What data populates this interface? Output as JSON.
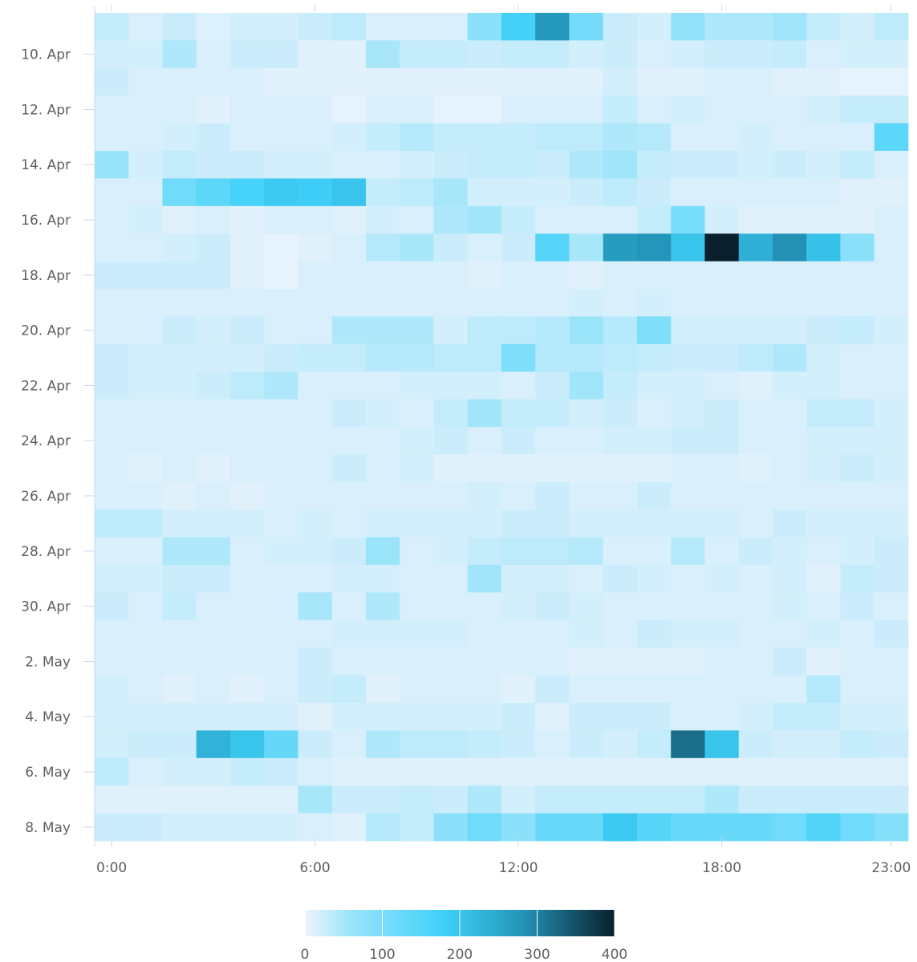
{
  "chart_data": {
    "type": "heatmap",
    "title": "",
    "xlabel": "",
    "ylabel": "",
    "x_tick_labels": [
      "0:00",
      "6:00",
      "12:00",
      "18:00",
      "23:00"
    ],
    "y_tick_labels": [
      "10. Apr",
      "12. Apr",
      "14. Apr",
      "16. Apr",
      "18. Apr",
      "20. Apr",
      "22. Apr",
      "24. Apr",
      "26. Apr",
      "28. Apr",
      "30. Apr",
      "2. May",
      "4. May",
      "6. May",
      "8. May"
    ],
    "x": [
      0,
      1,
      2,
      3,
      4,
      5,
      6,
      7,
      8,
      9,
      10,
      11,
      12,
      13,
      14,
      15,
      16,
      17,
      18,
      19,
      20,
      21,
      22,
      23
    ],
    "y": [
      "9. Apr",
      "10. Apr",
      "11. Apr",
      "12. Apr",
      "13. Apr",
      "14. Apr",
      "15. Apr",
      "16. Apr",
      "17. Apr",
      "18. Apr",
      "19. Apr",
      "20. Apr",
      "21. Apr",
      "22. Apr",
      "23. Apr",
      "24. Apr",
      "25. Apr",
      "26. Apr",
      "27. Apr",
      "28. Apr",
      "29. Apr",
      "30. Apr",
      "1. May",
      "2. May",
      "3. May",
      "4. May",
      "5. May",
      "6. May",
      "7. May",
      "8. May"
    ],
    "values": [
      [
        30,
        15,
        25,
        12,
        20,
        20,
        25,
        35,
        15,
        15,
        15,
        80,
        175,
        275,
        110,
        25,
        20,
        70,
        45,
        45,
        55,
        30,
        20,
        35
      ],
      [
        20,
        20,
        45,
        15,
        25,
        25,
        10,
        10,
        50,
        30,
        30,
        25,
        30,
        30,
        20,
        25,
        15,
        20,
        25,
        25,
        30,
        15,
        20,
        20
      ],
      [
        25,
        15,
        15,
        15,
        15,
        10,
        10,
        10,
        10,
        10,
        10,
        10,
        10,
        10,
        10,
        20,
        10,
        10,
        15,
        15,
        10,
        10,
        5,
        5
      ],
      [
        15,
        15,
        15,
        10,
        15,
        15,
        15,
        5,
        15,
        15,
        5,
        5,
        15,
        15,
        15,
        30,
        15,
        20,
        15,
        15,
        15,
        20,
        30,
        30
      ],
      [
        15,
        15,
        20,
        25,
        15,
        15,
        15,
        20,
        30,
        40,
        30,
        30,
        30,
        35,
        35,
        45,
        40,
        15,
        15,
        20,
        15,
        15,
        15,
        140
      ],
      [
        65,
        20,
        30,
        25,
        25,
        20,
        20,
        15,
        15,
        20,
        25,
        30,
        30,
        25,
        45,
        55,
        30,
        25,
        25,
        20,
        25,
        20,
        30,
        15
      ],
      [
        15,
        15,
        115,
        140,
        170,
        190,
        185,
        200,
        30,
        35,
        50,
        20,
        20,
        20,
        25,
        35,
        25,
        15,
        15,
        15,
        15,
        15,
        10,
        10
      ],
      [
        15,
        20,
        10,
        15,
        10,
        15,
        15,
        10,
        20,
        15,
        45,
        55,
        30,
        15,
        15,
        15,
        30,
        105,
        20,
        10,
        10,
        10,
        10,
        15
      ],
      [
        15,
        15,
        20,
        25,
        10,
        5,
        10,
        15,
        40,
        50,
        25,
        15,
        25,
        150,
        50,
        270,
        280,
        200,
        400,
        235,
        285,
        205,
        80,
        15
      ],
      [
        25,
        25,
        25,
        25,
        10,
        5,
        15,
        15,
        15,
        15,
        15,
        10,
        15,
        15,
        10,
        15,
        15,
        15,
        15,
        15,
        15,
        15,
        15,
        15
      ],
      [
        15,
        15,
        15,
        15,
        15,
        15,
        15,
        15,
        15,
        15,
        15,
        15,
        15,
        15,
        20,
        15,
        20,
        15,
        15,
        15,
        15,
        15,
        15,
        15
      ],
      [
        15,
        15,
        25,
        20,
        25,
        15,
        15,
        45,
        45,
        45,
        20,
        35,
        35,
        40,
        60,
        40,
        95,
        20,
        20,
        20,
        20,
        25,
        30,
        20
      ],
      [
        25,
        20,
        20,
        20,
        20,
        25,
        30,
        30,
        40,
        40,
        35,
        35,
        95,
        40,
        40,
        35,
        30,
        25,
        25,
        35,
        45,
        20,
        15,
        15
      ],
      [
        25,
        20,
        20,
        25,
        35,
        45,
        15,
        15,
        15,
        20,
        20,
        20,
        15,
        25,
        55,
        30,
        20,
        20,
        15,
        10,
        20,
        20,
        15,
        15
      ],
      [
        15,
        15,
        15,
        15,
        15,
        15,
        15,
        25,
        20,
        15,
        30,
        55,
        30,
        30,
        20,
        25,
        15,
        20,
        25,
        15,
        15,
        30,
        30,
        20
      ],
      [
        15,
        15,
        15,
        15,
        15,
        15,
        15,
        15,
        15,
        20,
        25,
        15,
        25,
        15,
        15,
        20,
        20,
        25,
        25,
        15,
        15,
        20,
        20,
        20
      ],
      [
        15,
        10,
        15,
        10,
        15,
        15,
        15,
        25,
        15,
        20,
        10,
        10,
        10,
        10,
        10,
        10,
        10,
        15,
        15,
        10,
        15,
        20,
        25,
        20
      ],
      [
        15,
        15,
        10,
        15,
        10,
        15,
        15,
        15,
        15,
        15,
        15,
        20,
        15,
        25,
        15,
        15,
        25,
        15,
        15,
        15,
        15,
        15,
        15,
        15
      ],
      [
        35,
        35,
        20,
        20,
        20,
        15,
        20,
        15,
        20,
        20,
        20,
        20,
        25,
        25,
        20,
        20,
        20,
        20,
        20,
        15,
        25,
        20,
        20,
        20
      ],
      [
        15,
        15,
        45,
        45,
        15,
        20,
        20,
        25,
        60,
        15,
        20,
        30,
        35,
        35,
        40,
        15,
        15,
        40,
        15,
        25,
        20,
        15,
        20,
        25
      ],
      [
        20,
        20,
        25,
        25,
        15,
        15,
        15,
        20,
        20,
        15,
        15,
        55,
        20,
        20,
        15,
        25,
        20,
        15,
        20,
        15,
        20,
        10,
        30,
        25
      ],
      [
        25,
        15,
        30,
        15,
        15,
        15,
        50,
        15,
        45,
        15,
        15,
        15,
        20,
        25,
        20,
        15,
        15,
        15,
        15,
        15,
        20,
        15,
        25,
        15
      ],
      [
        15,
        15,
        15,
        15,
        15,
        15,
        15,
        20,
        20,
        20,
        20,
        15,
        15,
        15,
        20,
        15,
        25,
        20,
        20,
        15,
        15,
        20,
        15,
        25
      ],
      [
        15,
        15,
        15,
        15,
        15,
        15,
        25,
        15,
        15,
        15,
        15,
        15,
        15,
        15,
        10,
        10,
        10,
        10,
        15,
        15,
        25,
        10,
        15,
        15
      ],
      [
        20,
        15,
        10,
        15,
        10,
        15,
        25,
        30,
        10,
        15,
        15,
        15,
        10,
        25,
        15,
        15,
        15,
        15,
        15,
        15,
        15,
        40,
        15,
        15
      ],
      [
        20,
        20,
        20,
        20,
        20,
        20,
        10,
        20,
        20,
        20,
        20,
        20,
        25,
        10,
        25,
        25,
        25,
        15,
        15,
        20,
        30,
        30,
        20,
        20
      ],
      [
        20,
        25,
        25,
        230,
        200,
        130,
        25,
        15,
        45,
        35,
        35,
        30,
        25,
        15,
        25,
        20,
        30,
        320,
        200,
        25,
        20,
        20,
        30,
        25
      ],
      [
        35,
        15,
        20,
        20,
        30,
        25,
        15,
        10,
        10,
        10,
        10,
        10,
        10,
        10,
        10,
        10,
        10,
        10,
        10,
        10,
        10,
        10,
        10,
        10
      ],
      [
        10,
        10,
        10,
        10,
        10,
        10,
        50,
        25,
        25,
        30,
        25,
        45,
        20,
        30,
        30,
        30,
        30,
        30,
        45,
        25,
        25,
        25,
        25,
        25
      ],
      [
        25,
        25,
        20,
        20,
        20,
        20,
        15,
        10,
        40,
        30,
        80,
        115,
        80,
        125,
        125,
        190,
        150,
        125,
        125,
        125,
        115,
        155,
        115,
        90
      ]
    ],
    "color_range": [
      0,
      400
    ],
    "colorbar_ticks": [
      "0",
      "100",
      "200",
      "300",
      "400"
    ],
    "colors": {
      "min": "#eef4fc",
      "mid_low": "#9ae4fa",
      "mid": "#3fd0f9",
      "mid_high": "#2396b9",
      "max": "#0a1f2c",
      "axis": "#ccd6eb",
      "label": "#606060"
    },
    "legend_placement": "bottom-center",
    "grid": false
  }
}
